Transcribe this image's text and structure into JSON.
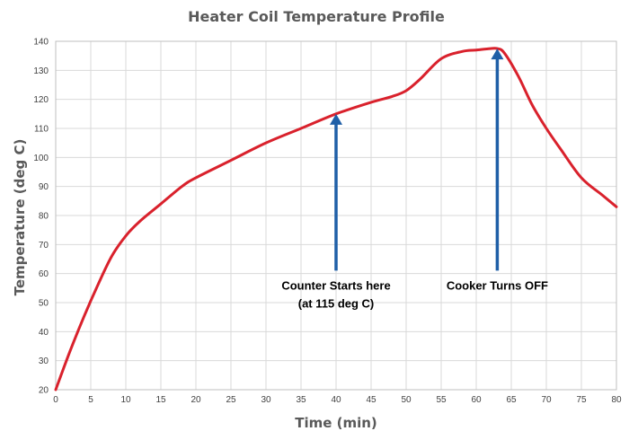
{
  "chart_data": {
    "type": "line",
    "title": "Heater Coil Temperature Profile",
    "xlabel": "Time (min)",
    "ylabel": "Temperature (deg C)",
    "xlim": [
      0,
      80
    ],
    "ylim": [
      20,
      140
    ],
    "xticks": [
      0,
      5,
      10,
      15,
      20,
      25,
      30,
      35,
      40,
      45,
      50,
      55,
      60,
      65,
      70,
      75,
      80
    ],
    "yticks": [
      20,
      30,
      40,
      50,
      60,
      70,
      80,
      90,
      100,
      110,
      120,
      130,
      140
    ],
    "grid": true,
    "legend": "none",
    "series": [
      {
        "color": "#d9212c",
        "x": [
          0,
          2,
          4,
          6,
          8,
          10,
          12,
          15,
          18,
          20,
          25,
          30,
          35,
          40,
          45,
          48,
          50,
          52,
          55,
          58,
          60,
          62,
          63,
          64,
          66,
          68,
          70,
          72,
          75,
          78,
          80
        ],
        "y": [
          20,
          33,
          45,
          56,
          66,
          73,
          78,
          84,
          90,
          93,
          99,
          105,
          110,
          115,
          119,
          121,
          123,
          127,
          134,
          136.5,
          137,
          137.5,
          137.5,
          136,
          128,
          118,
          110,
          103,
          93,
          87,
          83
        ]
      }
    ],
    "annotations": [
      {
        "lines": [
          "Counter Starts here",
          "(at 115 deg C)"
        ],
        "arrow_x": 40,
        "arrow_from_y": 61,
        "arrow_to_y": 115,
        "color": "#1f5fa7"
      },
      {
        "lines": [
          "Cooker Turns OFF"
        ],
        "arrow_x": 63,
        "arrow_from_y": 61,
        "arrow_to_y": 137.5,
        "color": "#1f5fa7"
      }
    ]
  }
}
